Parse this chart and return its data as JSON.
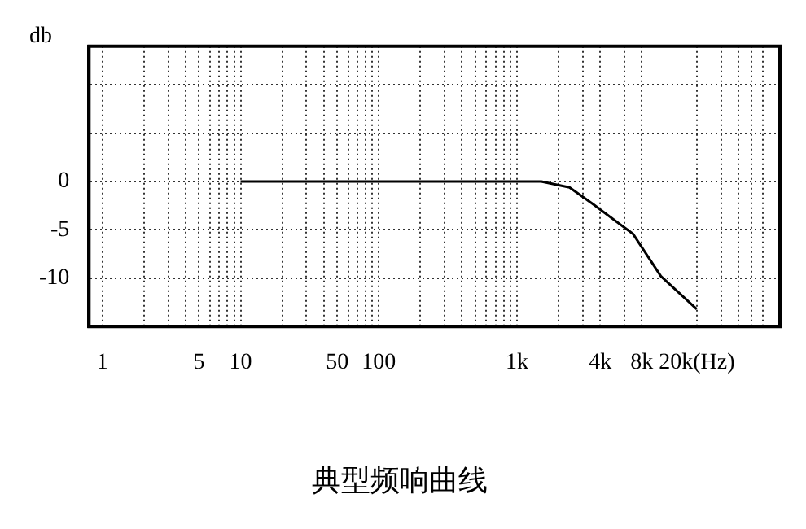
{
  "chart_data": {
    "type": "line",
    "title": "典型频响曲线",
    "ylabel": "db",
    "x": [
      10,
      100,
      1000,
      1500,
      2400,
      3600,
      6900,
      11000,
      20000
    ],
    "series": [
      {
        "color": "#000000",
        "values": [
          0,
          0,
          0,
          0,
          -0.6,
          -2.4,
          -5.4,
          -9.8,
          -13.2
        ]
      }
    ],
    "log": "x",
    "xlim": [
      0.8,
      80000
    ],
    "xticks": [
      1,
      {
        "value": 2,
        "label": null
      },
      {
        "value": 3,
        "label": null
      },
      {
        "value": 4,
        "label": null
      },
      5,
      {
        "value": 6,
        "label": null
      },
      {
        "value": 7,
        "label": null
      },
      {
        "value": 8,
        "label": null
      },
      {
        "value": 9,
        "label": null
      },
      10,
      {
        "value": 20,
        "label": null
      },
      {
        "value": 30,
        "label": null
      },
      {
        "value": 40,
        "label": null
      },
      50,
      {
        "value": 60,
        "label": null
      },
      {
        "value": 70,
        "label": null
      },
      {
        "value": 80,
        "label": null
      },
      {
        "value": 90,
        "label": null
      },
      100,
      {
        "value": 200,
        "label": null
      },
      {
        "value": 300,
        "label": null
      },
      {
        "value": 400,
        "label": null
      },
      {
        "value": 500,
        "label": null
      },
      {
        "value": 600,
        "label": null
      },
      {
        "value": 700,
        "label": null
      },
      {
        "value": 800,
        "label": null
      },
      {
        "value": 900,
        "label": null
      },
      {
        "value": 1000,
        "label": "1k"
      },
      {
        "value": 2000,
        "label": null
      },
      {
        "value": 3000,
        "label": null
      },
      {
        "value": 4000,
        "label": "4k"
      },
      {
        "value": 6000,
        "label": null
      },
      {
        "value": 8000,
        "label": "8k"
      },
      {
        "value": 20000,
        "label": "20k(Hz)"
      },
      {
        "value": 30000,
        "label": null
      },
      {
        "value": 40000,
        "label": null
      },
      {
        "value": 50000,
        "label": null
      },
      {
        "value": 60000,
        "label": null
      }
    ],
    "ylim": [
      -15,
      14
    ],
    "yticks": [
      -10,
      -5,
      0,
      {
        "value": 5,
        "label": null
      },
      {
        "value": 10,
        "label": null
      }
    ],
    "grid": true,
    "line_style": "solid",
    "marker": "none",
    "legend": false
  }
}
